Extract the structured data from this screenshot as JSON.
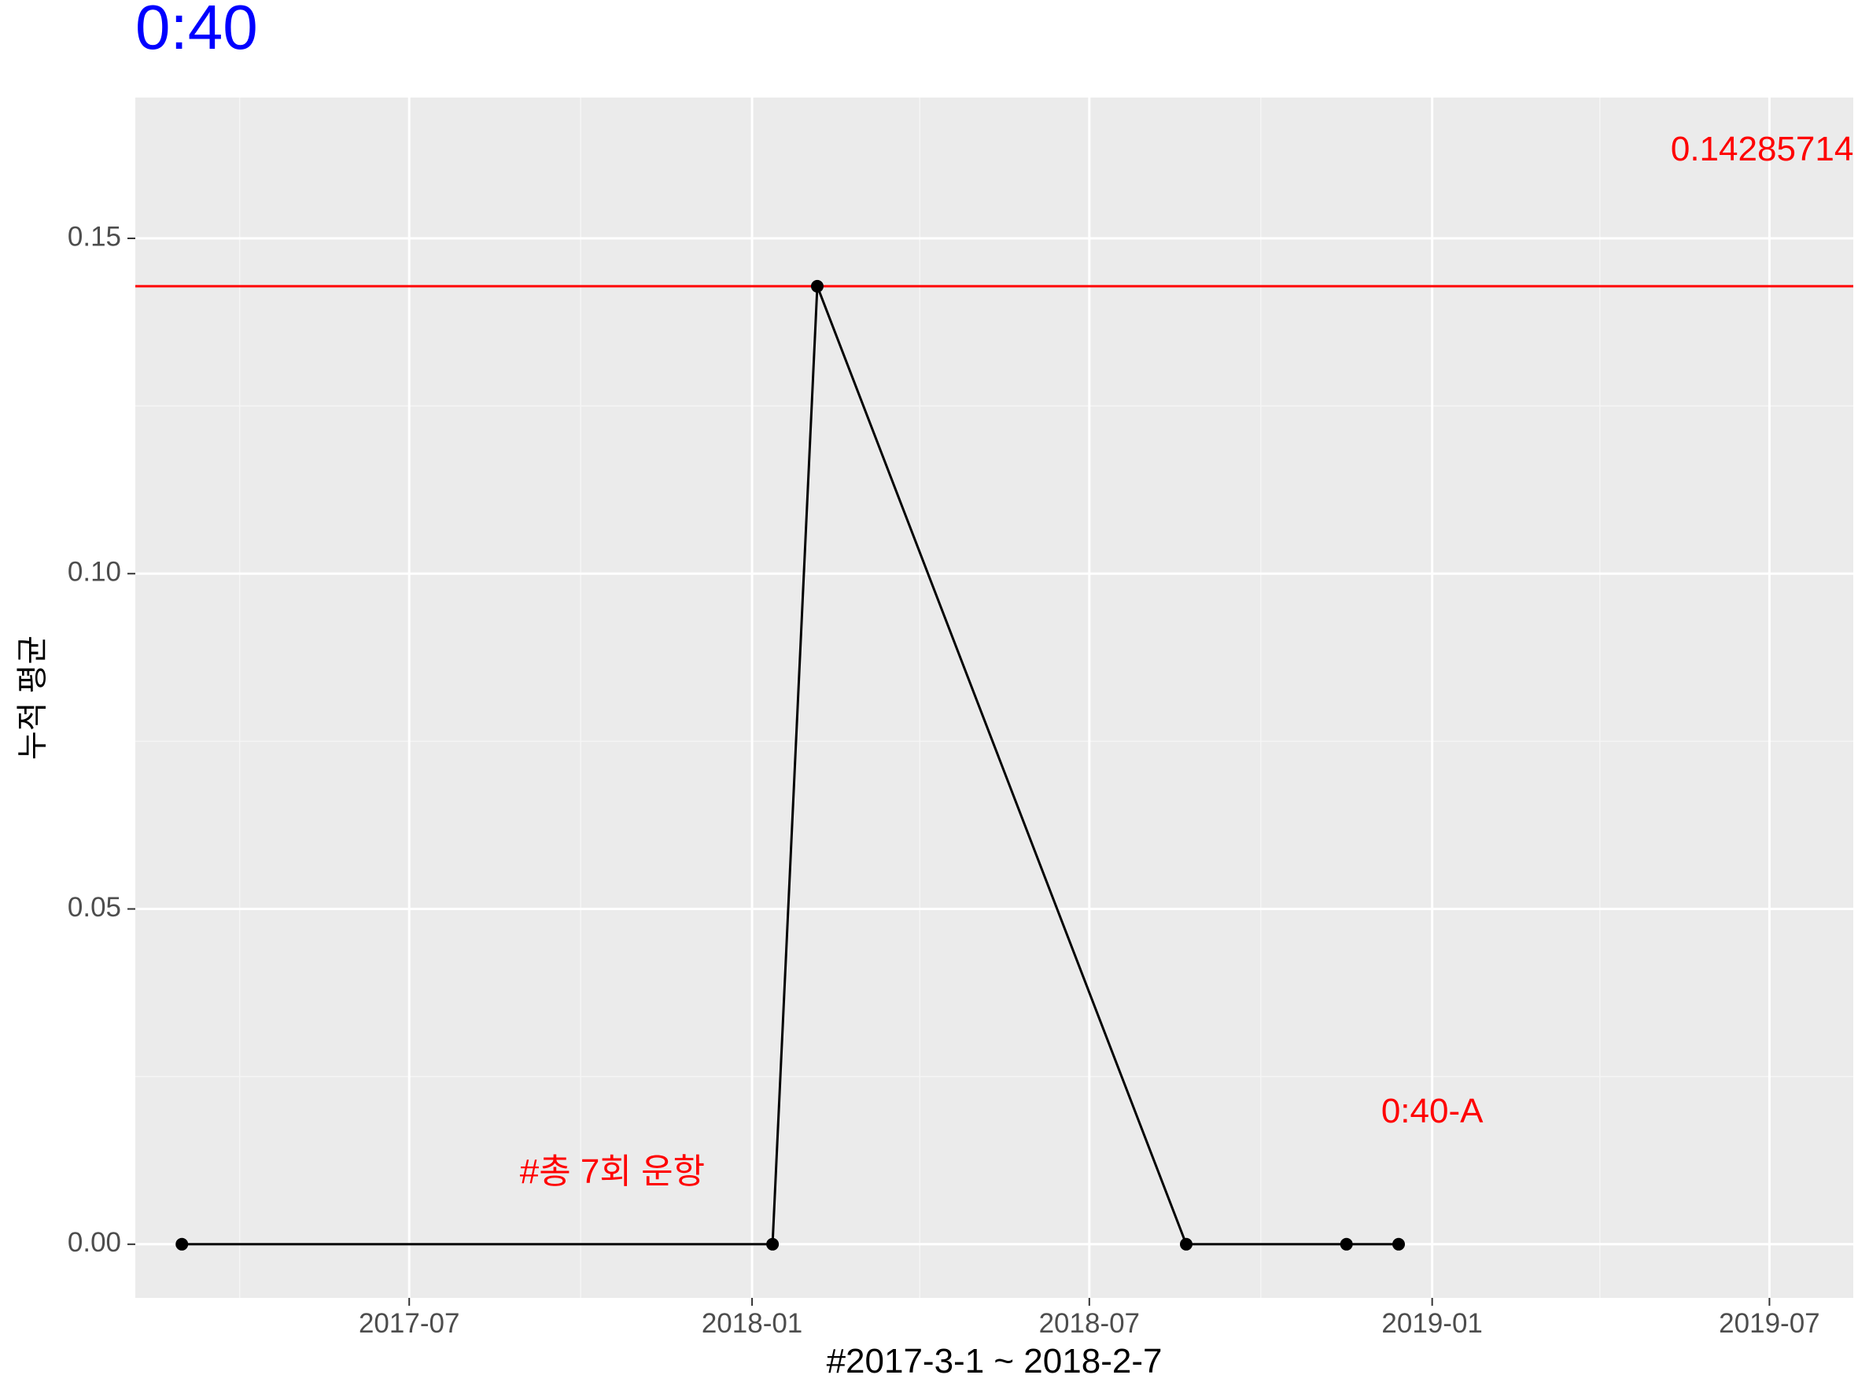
{
  "chart_data": {
    "type": "line",
    "title": "0:40",
    "xlabel": "#2017-3-1 ~ 2018-2-7",
    "ylabel": "누적 평균",
    "x_axis_type": "date",
    "xlim": [
      "2017-02-04",
      "2019-08-15"
    ],
    "ylim": [
      -0.008,
      0.171
    ],
    "x_ticks": [
      {
        "date": "2017-07-01",
        "label": "2017-07"
      },
      {
        "date": "2018-01-01",
        "label": "2018-01"
      },
      {
        "date": "2018-07-01",
        "label": "2018-07"
      },
      {
        "date": "2019-01-01",
        "label": "2019-01"
      },
      {
        "date": "2019-07-01",
        "label": "2019-07"
      }
    ],
    "x_minor_ticks": [
      "2017-04-01",
      "2017-10-01",
      "2018-04-01",
      "2018-10-01",
      "2019-04-01"
    ],
    "y_ticks": [
      {
        "value": 0.0,
        "label": "0.00"
      },
      {
        "value": 0.05,
        "label": "0.05"
      },
      {
        "value": 0.1,
        "label": "0.10"
      },
      {
        "value": 0.15,
        "label": "0.15"
      }
    ],
    "y_minor_ticks": [
      0.025,
      0.075,
      0.125
    ],
    "grid": true,
    "series": [
      {
        "color": "#000000",
        "points": [
          {
            "x": "2017-03-01",
            "y": 0.0
          },
          {
            "x": "2018-01-12",
            "y": 0.0
          },
          {
            "x": "2018-02-05",
            "y": 0.142857
          },
          {
            "x": "2018-08-22",
            "y": 0.0
          },
          {
            "x": "2018-11-16",
            "y": 0.0
          },
          {
            "x": "2018-12-14",
            "y": 0.0
          }
        ]
      }
    ],
    "hline": {
      "y": 0.142857,
      "color": "#ff0000"
    },
    "annotations": [
      {
        "text": "0.142857142857143",
        "x": "2019-05-09",
        "y": 0.163,
        "color": "#ff0000",
        "anchor": "start"
      },
      {
        "text": "0:40-A",
        "x": "2019-01-01",
        "y": 0.0195,
        "color": "#ff0000",
        "anchor": "middle"
      },
      {
        "text": "#총 7회 운항",
        "x": "2017-10-18",
        "y": 0.0105,
        "color": "#ff0000",
        "anchor": "middle"
      }
    ],
    "colors": {
      "title": "#0000ff",
      "panel": "#ebebeb",
      "grid_major": "#ffffff",
      "grid_minor": "#f5f5f5",
      "axis_text": "#4d4d4d",
      "axis_title": "#000000"
    }
  }
}
